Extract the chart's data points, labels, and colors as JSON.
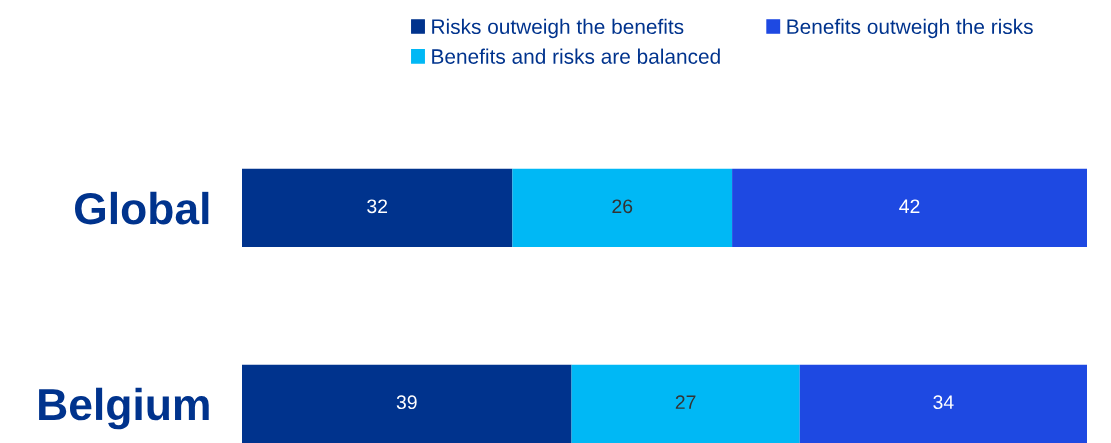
{
  "chart_data": {
    "type": "bar",
    "orientation": "horizontal",
    "stacked": true,
    "data_labels": true,
    "legend": "top",
    "grid": false,
    "categories": [
      "Global",
      "Belgium"
    ],
    "series": [
      {
        "name": "Risks outweigh the benefits",
        "color": "#00338d",
        "values": [
          32,
          39
        ]
      },
      {
        "name": "Benefits and risks are balanced",
        "color": "#00b8f5",
        "values": [
          26,
          27
        ]
      },
      {
        "name": "Benefits outweigh the risks",
        "color": "#1e49e2",
        "values": [
          42,
          34
        ]
      }
    ]
  }
}
